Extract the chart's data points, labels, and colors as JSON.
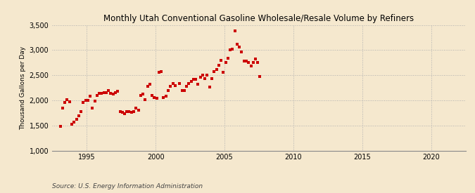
{
  "title": "Monthly Utah Conventional Gasoline Wholesale/Resale Volume by Refiners",
  "ylabel": "Thousand Gallons per Day",
  "source": "Source: U.S. Energy Information Administration",
  "background_color": "#f5e8ce",
  "dot_color": "#cc0000",
  "ylim": [
    1000,
    3500
  ],
  "yticks": [
    1000,
    1500,
    2000,
    2500,
    3000,
    3500
  ],
  "xlim_start": 1992.5,
  "xlim_end": 2022.5,
  "xticks": [
    1995,
    2000,
    2005,
    2010,
    2015,
    2020
  ],
  "data_x": [
    1993.08,
    1993.25,
    1993.42,
    1993.58,
    1993.75,
    1993.92,
    1994.08,
    1994.25,
    1994.42,
    1994.58,
    1994.75,
    1994.92,
    1995.08,
    1995.25,
    1995.42,
    1995.58,
    1995.75,
    1995.92,
    1996.08,
    1996.25,
    1996.42,
    1996.58,
    1996.75,
    1996.92,
    1997.08,
    1997.25,
    1997.42,
    1997.58,
    1997.75,
    1997.92,
    1998.08,
    1998.25,
    1998.42,
    1998.58,
    1998.75,
    1998.92,
    1999.08,
    1999.25,
    1999.42,
    1999.58,
    1999.75,
    1999.92,
    2000.08,
    2000.25,
    2000.42,
    2000.58,
    2000.75,
    2000.92,
    2001.08,
    2001.25,
    2001.42,
    2001.75,
    2001.92,
    2002.08,
    2002.25,
    2002.42,
    2002.58,
    2002.75,
    2002.92,
    2003.08,
    2003.25,
    2003.42,
    2003.58,
    2003.75,
    2003.92,
    2004.08,
    2004.25,
    2004.42,
    2004.58,
    2004.75,
    2004.92,
    2005.08,
    2005.25,
    2005.42,
    2005.58,
    2005.75,
    2005.92,
    2006.08,
    2006.25,
    2006.42,
    2006.58,
    2006.75,
    2006.92,
    2007.08,
    2007.25,
    2007.42,
    2007.58
  ],
  "data_y": [
    1480,
    1840,
    1960,
    2010,
    1970,
    1530,
    1560,
    1620,
    1690,
    1780,
    1960,
    2000,
    2000,
    2080,
    1840,
    1980,
    2100,
    2140,
    2140,
    2160,
    2160,
    2200,
    2140,
    2120,
    2150,
    2180,
    1770,
    1760,
    1740,
    1780,
    1780,
    1760,
    1780,
    1840,
    1800,
    2100,
    2120,
    2020,
    2280,
    2320,
    2100,
    2050,
    2040,
    2560,
    2580,
    2060,
    2080,
    2200,
    2280,
    2340,
    2300,
    2340,
    2200,
    2200,
    2280,
    2340,
    2380,
    2420,
    2420,
    2320,
    2460,
    2500,
    2440,
    2500,
    2260,
    2440,
    2580,
    2620,
    2700,
    2800,
    2560,
    2760,
    2840,
    3000,
    3020,
    3380,
    3120,
    3060,
    2960,
    2780,
    2780,
    2760,
    2680,
    2760,
    2820,
    2760,
    2480
  ],
  "title_fontsize": 8.5,
  "ylabel_fontsize": 6.5,
  "tick_labelsize": 7,
  "source_fontsize": 6.5,
  "marker_size": 7
}
